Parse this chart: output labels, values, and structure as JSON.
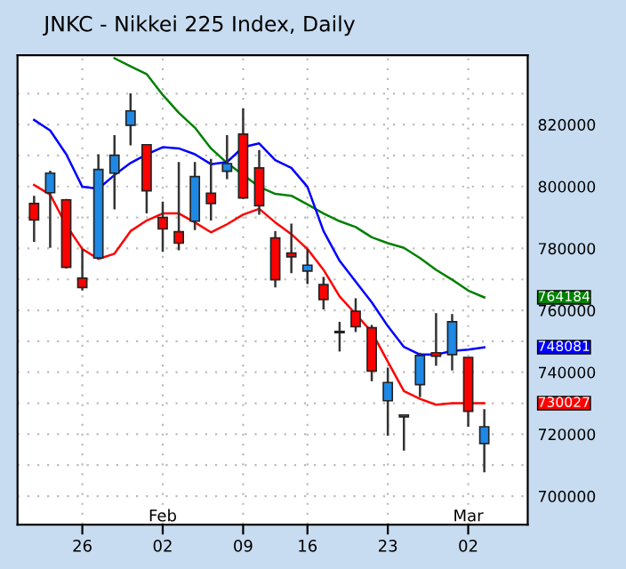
{
  "chart_data": {
    "type": "candlestick",
    "title": "JNKC - Nikkei 225 Index, Daily",
    "categories": [
      null,
      null,
      null,
      "26",
      null,
      null,
      null,
      null,
      "02",
      null,
      null,
      null,
      null,
      "09",
      null,
      null,
      null,
      "16",
      null,
      null,
      null,
      null,
      "23",
      null,
      null,
      null,
      null,
      "02",
      null
    ],
    "annotations": [
      "Feb",
      "Mar",
      "764184",
      "748081",
      "730027"
    ],
    "ohlc": [
      [
        794500,
        797000,
        782100,
        789200
      ],
      [
        798000,
        805100,
        780200,
        804300
      ],
      [
        795700,
        796000,
        773500,
        773900
      ],
      [
        770400,
        779800,
        766400,
        767400
      ],
      [
        776900,
        810400,
        776900,
        805500
      ],
      [
        804300,
        816600,
        792600,
        810100
      ],
      [
        819800,
        830100,
        813300,
        824400
      ],
      [
        813500,
        813500,
        791300,
        798600
      ],
      [
        790000,
        795100,
        778900,
        786300
      ],
      [
        785400,
        807900,
        779400,
        781700
      ],
      [
        788800,
        807900,
        785900,
        803200
      ],
      [
        797800,
        808900,
        789000,
        794500
      ],
      [
        804900,
        816600,
        802400,
        807400
      ],
      [
        816900,
        825200,
        796000,
        796300
      ],
      [
        806000,
        811800,
        790900,
        793800
      ],
      [
        783400,
        785600,
        767400,
        769900
      ],
      [
        778500,
        788000,
        772000,
        777300
      ],
      [
        772700,
        779800,
        768500,
        774600
      ],
      [
        768300,
        770800,
        760300,
        763500
      ],
      [
        753200,
        756300,
        746700,
        752800
      ],
      [
        759700,
        763900,
        753000,
        754700
      ],
      [
        754400,
        755300,
        737100,
        740400
      ],
      [
        730800,
        741500,
        719500,
        736700
      ],
      [
        725600,
        726300,
        714700,
        726200
      ],
      [
        736000,
        746300,
        732000,
        745400
      ],
      [
        746300,
        759100,
        742100,
        745200
      ],
      [
        745700,
        758800,
        740600,
        756300
      ],
      [
        744800,
        744800,
        722400,
        727400
      ],
      [
        717000,
        728100,
        707700,
        722400
      ]
    ],
    "colors": [
      "#ff0000",
      "#1e88e5",
      "#ff0000",
      "#ff0000",
      "#1e88e5",
      "#1e88e5",
      "#1e88e5",
      "#ff0000",
      "#ff0000",
      "#ff0000",
      "#1e88e5",
      "#ff0000",
      "#1e88e5",
      "#ff0000",
      "#ff0000",
      "#ff0000",
      "#ff0000",
      "#1e88e5",
      "#ff0000",
      "#ff0000",
      "#ff0000",
      "#ff0000",
      "#1e88e5",
      "#1e88e5",
      "#1e88e5",
      "#ff0000",
      "#1e88e5",
      "#ff0000",
      "#1e88e5"
    ],
    "series": [
      {
        "type": "line",
        "color": "#008000",
        "values": [
          null,
          null,
          null,
          null,
          null,
          841400,
          838800,
          836300,
          829600,
          823800,
          819000,
          812300,
          807600,
          803700,
          799900,
          797600,
          797000,
          794200,
          791300,
          788800,
          786900,
          783600,
          781700,
          780200,
          776900,
          773100,
          769900,
          766400,
          764184
        ]
      },
      {
        "type": "line",
        "color": "#0000ff",
        "values": [
          821500,
          818100,
          810400,
          799900,
          799300,
          803700,
          807600,
          810400,
          812700,
          812300,
          810400,
          807200,
          807900,
          812700,
          813900,
          808500,
          806000,
          799900,
          785600,
          776000,
          769300,
          762600,
          754900,
          748200,
          745700,
          745700,
          746900,
          747300,
          748081
        ]
      },
      {
        "type": "line",
        "color": "#ff0000",
        "values": [
          800500,
          797400,
          787500,
          779800,
          776600,
          778300,
          785600,
          789000,
          791300,
          791300,
          788400,
          785200,
          787800,
          790900,
          792800,
          788400,
          784600,
          779800,
          773100,
          764500,
          758800,
          753000,
          743400,
          733900,
          731400,
          729500,
          730000,
          730000,
          730027
        ]
      }
    ],
    "ylim": [
      690800,
      842400
    ],
    "yticks": [
      700000,
      {
        "value": 710000,
        "label": null
      },
      720000,
      {
        "value": 730000,
        "label": null
      },
      740000,
      {
        "value": 750000,
        "label": null
      },
      760000,
      {
        "value": 770000,
        "label": null
      },
      780000,
      {
        "value": 790000,
        "label": null
      },
      800000,
      {
        "value": 810000,
        "label": null
      },
      820000,
      {
        "value": 830000,
        "label": null
      }
    ],
    "grid": true
  }
}
